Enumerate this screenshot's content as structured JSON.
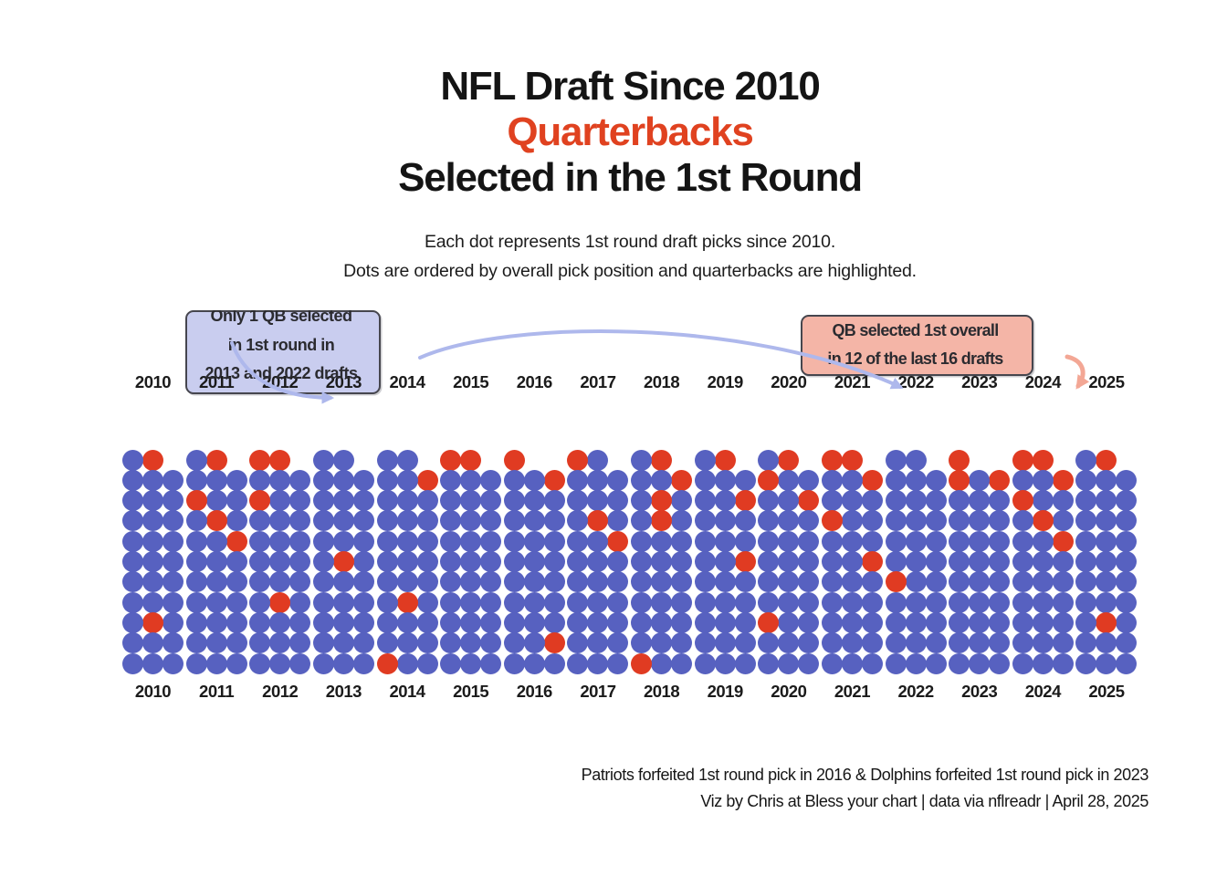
{
  "header": {
    "title_line1": "NFL Draft Since 2010",
    "title_line2": "Quarterbacks",
    "title_line3": "Selected in the 1st Round",
    "subtitle_line1": "Each dot represents 1st round draft picks since 2010.",
    "subtitle_line2": "Dots are ordered by overall pick position and quarterbacks are highlighted."
  },
  "annotations": {
    "left_box": {
      "lines": [
        "Only 1 QB selected",
        "in 1st round in",
        "2013 and 2022 drafts"
      ]
    },
    "right_box": {
      "lines": [
        "QB selected 1st overall",
        "in 12 of the last 16 drafts"
      ]
    }
  },
  "footer": {
    "line1": "Patriots forfeited 1st round pick in 2016 & Dolphins forfeited 1st round pick in 2023",
    "line2": "Viz by Chris at Bless your chart | data via nflreadr | April 28, 2025"
  },
  "colors": {
    "dot_blue": "#5761c0",
    "dot_qb_red": "#e03b22",
    "title_accent_red": "#e04220",
    "left_box_fill": "#c9cdef",
    "right_box_fill": "#f4b5a7",
    "box_border": "#46464e",
    "arrow_lavender": "#aeb8ec",
    "arrow_salmon": "#f3a795",
    "text_dark": "#1a1a1a"
  },
  "chart_data": {
    "type": "waffle",
    "title": "NFL Draft Since 2010 — Quarterbacks Selected in the 1st Round",
    "unit": "one dot = one 1st round draft pick",
    "highlight_meaning": "red dot = quarterback, blue dot = other position",
    "ordering": "picks ordered by overall pick position; pick 1 at right end of top row, rows fill top-to-bottom and right-to-left",
    "grid": {
      "columns_per_year": 3,
      "max_rows": 11
    },
    "legend_position": "none",
    "years": [
      {
        "year": "2010",
        "total_picks": 32,
        "qb_pick_numbers": [
          1,
          25
        ]
      },
      {
        "year": "2011",
        "total_picks": 32,
        "qb_pick_numbers": [
          1,
          8,
          10,
          12
        ]
      },
      {
        "year": "2012",
        "total_picks": 32,
        "qb_pick_numbers": [
          1,
          2,
          8,
          22
        ]
      },
      {
        "year": "2013",
        "total_picks": 32,
        "qb_pick_numbers": [
          16
        ]
      },
      {
        "year": "2014",
        "total_picks": 32,
        "qb_pick_numbers": [
          3,
          22,
          32
        ]
      },
      {
        "year": "2015",
        "total_picks": 32,
        "qb_pick_numbers": [
          1,
          2
        ]
      },
      {
        "year": "2016",
        "total_picks": 31,
        "qb_pick_numbers": [
          1,
          2,
          26
        ]
      },
      {
        "year": "2017",
        "total_picks": 32,
        "qb_pick_numbers": [
          2,
          10,
          12
        ]
      },
      {
        "year": "2018",
        "total_picks": 32,
        "qb_pick_numbers": [
          1,
          3,
          7,
          10,
          32
        ]
      },
      {
        "year": "2019",
        "total_picks": 32,
        "qb_pick_numbers": [
          1,
          6,
          15
        ]
      },
      {
        "year": "2020",
        "total_picks": 32,
        "qb_pick_numbers": [
          1,
          5,
          6,
          26
        ]
      },
      {
        "year": "2021",
        "total_picks": 32,
        "qb_pick_numbers": [
          1,
          2,
          3,
          11,
          15
        ]
      },
      {
        "year": "2022",
        "total_picks": 32,
        "qb_pick_numbers": [
          20
        ]
      },
      {
        "year": "2023",
        "total_picks": 31,
        "qb_pick_numbers": [
          1,
          2,
          4
        ]
      },
      {
        "year": "2024",
        "total_picks": 32,
        "qb_pick_numbers": [
          1,
          2,
          3,
          8,
          10,
          12
        ]
      },
      {
        "year": "2025",
        "total_picks": 32,
        "qb_pick_numbers": [
          1,
          25
        ]
      }
    ]
  }
}
